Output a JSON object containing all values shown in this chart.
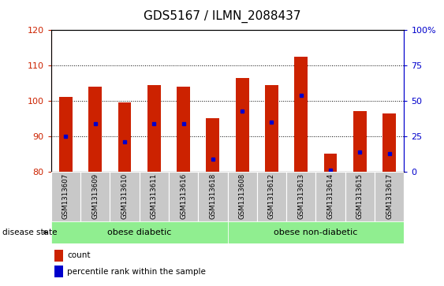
{
  "title": "GDS5167 / ILMN_2088437",
  "samples": [
    "GSM1313607",
    "GSM1313609",
    "GSM1313610",
    "GSM1313611",
    "GSM1313616",
    "GSM1313618",
    "GSM1313608",
    "GSM1313612",
    "GSM1313613",
    "GSM1313614",
    "GSM1313615",
    "GSM1313617"
  ],
  "bar_tops": [
    101,
    104,
    99.5,
    104.5,
    104,
    95,
    106.5,
    104.5,
    112.5,
    85,
    97,
    96.5
  ],
  "bar_bottom": 80,
  "blue_dots": [
    90,
    93.5,
    88.5,
    93.5,
    93.5,
    83.5,
    97,
    94,
    101.5,
    80.5,
    85.5,
    85
  ],
  "ylim": [
    80,
    120
  ],
  "yticks": [
    80,
    90,
    100,
    110,
    120
  ],
  "right_yticks": [
    0,
    25,
    50,
    75,
    100
  ],
  "bar_color": "#CC2200",
  "dot_color": "#0000CC",
  "group1_label": "obese diabetic",
  "group2_label": "obese non-diabetic",
  "group_color": "#90EE90",
  "disease_state_label": "disease state",
  "legend_count": "count",
  "legend_pct": "percentile rank within the sample",
  "title_fontsize": 11,
  "tick_fontsize": 8,
  "bar_width": 0.45
}
